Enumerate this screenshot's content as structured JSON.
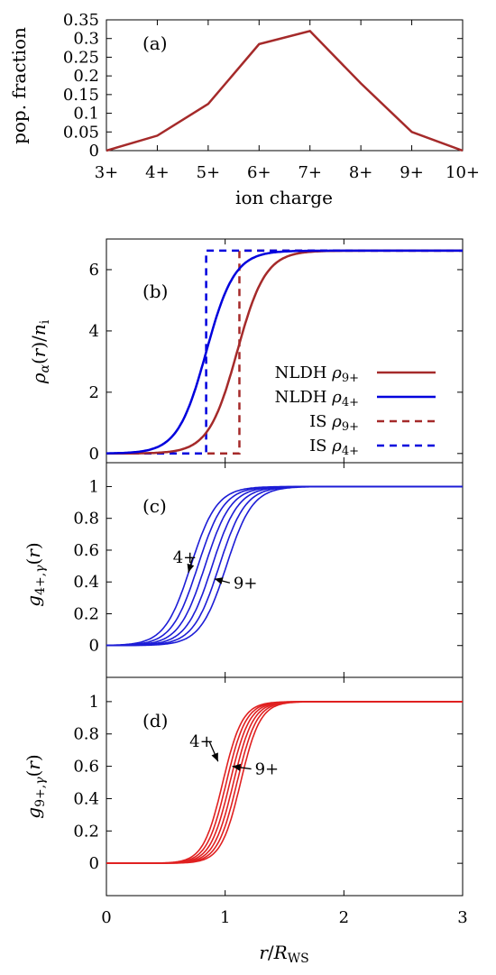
{
  "chart_data": [
    {
      "id": "a",
      "type": "line",
      "panel_label": "(a)",
      "xlabel": "ion charge",
      "ylabel": "pop. fraction",
      "categories": [
        "3+",
        "4+",
        "5+",
        "6+",
        "7+",
        "8+",
        "9+",
        "10+"
      ],
      "series": [
        {
          "color": "#a52a2a",
          "values": [
            0.0,
            0.04,
            0.125,
            0.285,
            0.32,
            0.18,
            0.05,
            0.0
          ]
        }
      ],
      "ylim": [
        0,
        0.35
      ],
      "yticks": [
        "0",
        "0.05",
        "0.1",
        "0.15",
        "0.2",
        "0.25",
        "0.3",
        "0.35"
      ],
      "grid": false
    },
    {
      "id": "b",
      "type": "line",
      "panel_label": "(b)",
      "ylabel": "ρα(r)/ni",
      "xlim": [
        0,
        3
      ],
      "ylim": [
        -0.3,
        7.0
      ],
      "yticks": [
        "0",
        "2",
        "4",
        "6"
      ],
      "plateau": 6.62,
      "legend_position": "right-middle",
      "series": [
        {
          "name": "NLDH ρ9+",
          "legend_label": "NLDH",
          "legend_sub": "9+",
          "color": "#a52a2a",
          "dash": "solid",
          "model": "smooth",
          "center": 1.1,
          "width": 0.12
        },
        {
          "name": "NLDH ρ4+",
          "legend_label": "NLDH",
          "legend_sub": "4+",
          "color": "#0000dd",
          "dash": "solid",
          "model": "smooth",
          "center": 0.84,
          "width": 0.12
        },
        {
          "name": "IS ρ9+",
          "legend_label": "IS",
          "legend_sub": "9+",
          "color": "#a52a2a",
          "dash": "dashed",
          "model": "step",
          "center": 1.12
        },
        {
          "name": "IS ρ4+",
          "legend_label": "IS",
          "legend_sub": "4+",
          "color": "#0000dd",
          "dash": "dashed",
          "model": "step",
          "center": 0.84
        }
      ],
      "grid": false
    },
    {
      "id": "c",
      "type": "line",
      "panel_label": "(c)",
      "ylabel": "g4+,γ(r)",
      "xlim": [
        0,
        3
      ],
      "ylim": [
        -0.2,
        1.15
      ],
      "yticks": [
        "0",
        "0.2",
        "0.4",
        "0.6",
        "0.8",
        "1"
      ],
      "color": "#1c1cd6",
      "centers": [
        0.71,
        0.77,
        0.83,
        0.89,
        0.95,
        1.01
      ],
      "width": 0.2,
      "annotations": [
        {
          "text": "4+",
          "x": 0.56,
          "y": 0.52,
          "arrow_to_x": 0.69,
          "arrow_to_y": 0.46
        },
        {
          "text": "9+",
          "x": 1.07,
          "y": 0.36,
          "arrow_to_x": 0.91,
          "arrow_to_y": 0.42
        }
      ],
      "grid": false
    },
    {
      "id": "d",
      "type": "line",
      "panel_label": "(d)",
      "ylabel": "g9+,γ(r)",
      "xlabel": "r/RWS",
      "xlim": [
        0,
        3
      ],
      "ylim": [
        -0.2,
        1.15
      ],
      "yticks": [
        "0",
        "0.2",
        "0.4",
        "0.6",
        "0.8",
        "1"
      ],
      "xticks": [
        "0",
        "1",
        "2",
        "3"
      ],
      "color": "#e02020",
      "centers": [
        0.98,
        1.01,
        1.04,
        1.07,
        1.1,
        1.13
      ],
      "width": 0.15,
      "annotations": [
        {
          "text": "4+",
          "x": 0.7,
          "y": 0.72,
          "arrow_to_x": 0.94,
          "arrow_to_y": 0.63
        },
        {
          "text": "9+",
          "x": 1.25,
          "y": 0.55,
          "arrow_to_x": 1.06,
          "arrow_to_y": 0.6
        }
      ],
      "grid": false
    }
  ]
}
